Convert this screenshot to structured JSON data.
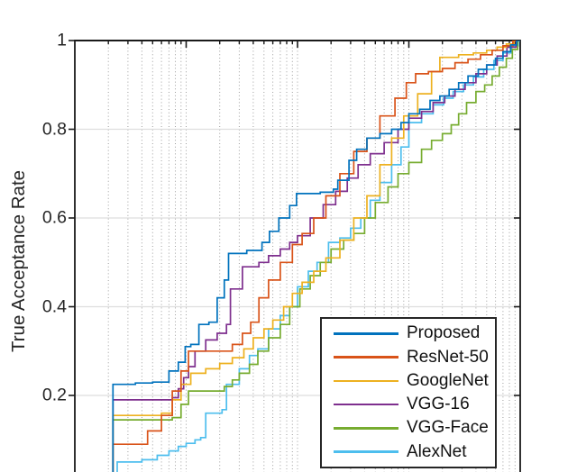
{
  "figure": {
    "ylabel": "True Acceptance Rate"
  },
  "chart_data": {
    "type": "line",
    "title": "",
    "xlabel": "",
    "ylabel": "True Acceptance Rate",
    "x_scale": "log",
    "xlim": [
      0.0001,
      1
    ],
    "ylim": [
      0,
      1
    ],
    "y_ticks": [
      1,
      0.8,
      0.6,
      0.4,
      0.2
    ],
    "y_tick_labels": [
      "1",
      "0.8",
      "0.6",
      "0.4",
      "0.2"
    ],
    "grid": true,
    "x_grid_style": "dotted-log-minor-and-major",
    "y_grid_style": "solid",
    "legend_position": "lower-right",
    "axis_color": "#1a1a1a",
    "grid_color_x": "#9e9e9e",
    "grid_color_y": "#dedede",
    "series": [
      {
        "name": "Proposed",
        "color": "#0072BD",
        "points": [
          [
            0.00022,
            0.225
          ],
          [
            0.00035,
            0.228
          ],
          [
            0.0005,
            0.23
          ],
          [
            0.0007,
            0.255
          ],
          [
            0.00085,
            0.275
          ],
          [
            0.00098,
            0.31
          ],
          [
            0.0011,
            0.315
          ],
          [
            0.0013,
            0.36
          ],
          [
            0.0016,
            0.365
          ],
          [
            0.0019,
            0.42
          ],
          [
            0.0022,
            0.46
          ],
          [
            0.0024,
            0.52
          ],
          [
            0.0035,
            0.527
          ],
          [
            0.0048,
            0.545
          ],
          [
            0.0056,
            0.57
          ],
          [
            0.0068,
            0.6
          ],
          [
            0.0085,
            0.628
          ],
          [
            0.0098,
            0.655
          ],
          [
            0.016,
            0.658
          ],
          [
            0.021,
            0.665
          ],
          [
            0.023,
            0.685
          ],
          [
            0.029,
            0.73
          ],
          [
            0.034,
            0.755
          ],
          [
            0.042,
            0.78
          ],
          [
            0.055,
            0.79
          ],
          [
            0.07,
            0.8
          ],
          [
            0.085,
            0.815
          ],
          [
            0.1,
            0.835
          ],
          [
            0.125,
            0.845
          ],
          [
            0.155,
            0.865
          ],
          [
            0.19,
            0.875
          ],
          [
            0.23,
            0.89
          ],
          [
            0.28,
            0.905
          ],
          [
            0.34,
            0.92
          ],
          [
            0.42,
            0.935
          ],
          [
            0.5,
            0.945
          ],
          [
            0.6,
            0.96
          ],
          [
            0.7,
            0.975
          ],
          [
            0.82,
            0.99
          ],
          [
            0.93,
            1.0
          ]
        ]
      },
      {
        "name": "ResNet-50",
        "color": "#D95319",
        "points": [
          [
            0.00022,
            0.09
          ],
          [
            0.00045,
            0.12
          ],
          [
            0.0006,
            0.155
          ],
          [
            0.00075,
            0.21
          ],
          [
            0.0009,
            0.255
          ],
          [
            0.00105,
            0.3
          ],
          [
            0.0026,
            0.315
          ],
          [
            0.0032,
            0.34
          ],
          [
            0.0038,
            0.365
          ],
          [
            0.0045,
            0.42
          ],
          [
            0.0055,
            0.46
          ],
          [
            0.007,
            0.5
          ],
          [
            0.009,
            0.54
          ],
          [
            0.011,
            0.565
          ],
          [
            0.014,
            0.6
          ],
          [
            0.018,
            0.65
          ],
          [
            0.024,
            0.7
          ],
          [
            0.032,
            0.75
          ],
          [
            0.042,
            0.78
          ],
          [
            0.055,
            0.83
          ],
          [
            0.075,
            0.87
          ],
          [
            0.095,
            0.905
          ],
          [
            0.115,
            0.925
          ],
          [
            0.15,
            0.93
          ],
          [
            0.2,
            0.937
          ],
          [
            0.26,
            0.95
          ],
          [
            0.34,
            0.958
          ],
          [
            0.44,
            0.968
          ],
          [
            0.56,
            0.978
          ],
          [
            0.7,
            0.988
          ],
          [
            0.86,
            1.0
          ]
        ]
      },
      {
        "name": "GoogleNet",
        "color": "#EDB120",
        "points": [
          [
            0.00022,
            0.155
          ],
          [
            0.0006,
            0.16
          ],
          [
            0.00075,
            0.19
          ],
          [
            0.0009,
            0.225
          ],
          [
            0.0011,
            0.25
          ],
          [
            0.0015,
            0.26
          ],
          [
            0.002,
            0.272
          ],
          [
            0.0026,
            0.285
          ],
          [
            0.0033,
            0.305
          ],
          [
            0.004,
            0.33
          ],
          [
            0.005,
            0.35
          ],
          [
            0.006,
            0.37
          ],
          [
            0.0075,
            0.4
          ],
          [
            0.009,
            0.43
          ],
          [
            0.011,
            0.455
          ],
          [
            0.014,
            0.48
          ],
          [
            0.018,
            0.51
          ],
          [
            0.024,
            0.55
          ],
          [
            0.032,
            0.6
          ],
          [
            0.042,
            0.65
          ],
          [
            0.055,
            0.72
          ],
          [
            0.07,
            0.78
          ],
          [
            0.09,
            0.83
          ],
          [
            0.12,
            0.88
          ],
          [
            0.16,
            0.93
          ],
          [
            0.19,
            0.962
          ],
          [
            0.28,
            0.968
          ],
          [
            0.38,
            0.972
          ],
          [
            0.5,
            0.978
          ],
          [
            0.62,
            0.985
          ],
          [
            0.75,
            0.992
          ],
          [
            0.88,
            1.0
          ]
        ]
      },
      {
        "name": "VGG-16",
        "color": "#7E2F8E",
        "points": [
          [
            0.00022,
            0.19
          ],
          [
            0.00075,
            0.195
          ],
          [
            0.00085,
            0.215
          ],
          [
            0.00095,
            0.24
          ],
          [
            0.00105,
            0.265
          ],
          [
            0.0012,
            0.3
          ],
          [
            0.0015,
            0.325
          ],
          [
            0.0019,
            0.34
          ],
          [
            0.0023,
            0.36
          ],
          [
            0.0025,
            0.44
          ],
          [
            0.0032,
            0.49
          ],
          [
            0.0045,
            0.5
          ],
          [
            0.0055,
            0.515
          ],
          [
            0.007,
            0.53
          ],
          [
            0.0085,
            0.545
          ],
          [
            0.01,
            0.56
          ],
          [
            0.013,
            0.6
          ],
          [
            0.017,
            0.63
          ],
          [
            0.022,
            0.66
          ],
          [
            0.028,
            0.69
          ],
          [
            0.035,
            0.72
          ],
          [
            0.045,
            0.745
          ],
          [
            0.06,
            0.77
          ],
          [
            0.08,
            0.8
          ],
          [
            0.1,
            0.825
          ],
          [
            0.13,
            0.84
          ],
          [
            0.165,
            0.86
          ],
          [
            0.21,
            0.875
          ],
          [
            0.26,
            0.89
          ],
          [
            0.32,
            0.905
          ],
          [
            0.4,
            0.925
          ],
          [
            0.5,
            0.945
          ],
          [
            0.62,
            0.965
          ],
          [
            0.76,
            0.985
          ],
          [
            0.92,
            1.0
          ]
        ]
      },
      {
        "name": "VGG-Face",
        "color": "#77AC30",
        "points": [
          [
            0.00022,
            0.145
          ],
          [
            0.00075,
            0.15
          ],
          [
            0.0009,
            0.18
          ],
          [
            0.00105,
            0.21
          ],
          [
            0.0022,
            0.22
          ],
          [
            0.0026,
            0.235
          ],
          [
            0.003,
            0.25
          ],
          [
            0.0037,
            0.27
          ],
          [
            0.0044,
            0.3
          ],
          [
            0.0055,
            0.33
          ],
          [
            0.007,
            0.36
          ],
          [
            0.0085,
            0.4
          ],
          [
            0.0105,
            0.44
          ],
          [
            0.013,
            0.47
          ],
          [
            0.016,
            0.5
          ],
          [
            0.02,
            0.53
          ],
          [
            0.026,
            0.55
          ],
          [
            0.032,
            0.565
          ],
          [
            0.04,
            0.6
          ],
          [
            0.05,
            0.635
          ],
          [
            0.065,
            0.67
          ],
          [
            0.08,
            0.7
          ],
          [
            0.1,
            0.725
          ],
          [
            0.13,
            0.755
          ],
          [
            0.16,
            0.775
          ],
          [
            0.2,
            0.79
          ],
          [
            0.24,
            0.81
          ],
          [
            0.28,
            0.835
          ],
          [
            0.33,
            0.86
          ],
          [
            0.4,
            0.885
          ],
          [
            0.48,
            0.9
          ],
          [
            0.56,
            0.92
          ],
          [
            0.65,
            0.94
          ],
          [
            0.75,
            0.96
          ],
          [
            0.85,
            0.98
          ],
          [
            0.95,
            1.0
          ]
        ]
      },
      {
        "name": "AlexNet",
        "color": "#4DBEEE",
        "points": [
          [
            0.00024,
            0.05
          ],
          [
            0.0004,
            0.055
          ],
          [
            0.00055,
            0.065
          ],
          [
            0.0007,
            0.075
          ],
          [
            0.00085,
            0.085
          ],
          [
            0.001,
            0.092
          ],
          [
            0.0012,
            0.1
          ],
          [
            0.00135,
            0.105
          ],
          [
            0.0015,
            0.16
          ],
          [
            0.0021,
            0.168
          ],
          [
            0.0023,
            0.225
          ],
          [
            0.003,
            0.26
          ],
          [
            0.0037,
            0.29
          ],
          [
            0.0044,
            0.305
          ],
          [
            0.0055,
            0.35
          ],
          [
            0.007,
            0.38
          ],
          [
            0.0085,
            0.4
          ],
          [
            0.01,
            0.445
          ],
          [
            0.0125,
            0.48
          ],
          [
            0.015,
            0.5
          ],
          [
            0.019,
            0.545
          ],
          [
            0.024,
            0.555
          ],
          [
            0.03,
            0.577
          ],
          [
            0.037,
            0.6
          ],
          [
            0.045,
            0.64
          ],
          [
            0.055,
            0.68
          ],
          [
            0.07,
            0.72
          ],
          [
            0.085,
            0.76
          ],
          [
            0.1,
            0.815
          ],
          [
            0.13,
            0.835
          ],
          [
            0.165,
            0.855
          ],
          [
            0.205,
            0.87
          ],
          [
            0.25,
            0.885
          ],
          [
            0.31,
            0.9
          ],
          [
            0.38,
            0.918
          ],
          [
            0.47,
            0.935
          ],
          [
            0.58,
            0.955
          ],
          [
            0.7,
            0.972
          ],
          [
            0.84,
            0.988
          ],
          [
            0.96,
            1.0
          ]
        ]
      }
    ]
  }
}
